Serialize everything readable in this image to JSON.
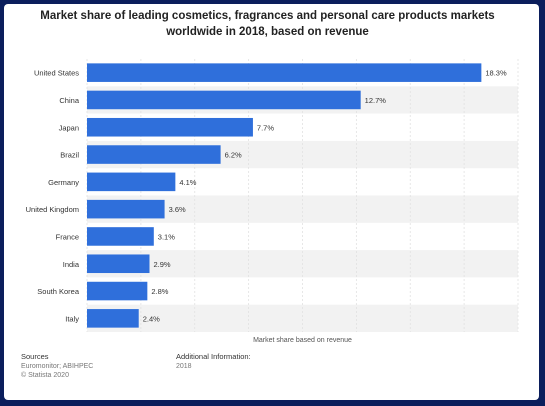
{
  "chart_data": {
    "type": "bar",
    "orientation": "horizontal",
    "title": "Market share of leading cosmetics, fragrances and personal care products markets worldwide in 2018, based on revenue",
    "title_lines": [
      "Market share of leading cosmetics, fragrances and personal care products markets",
      "worldwide in 2018, based on revenue"
    ],
    "categories": [
      "United States",
      "China",
      "Japan",
      "Brazil",
      "Germany",
      "United Kingdom",
      "France",
      "India",
      "South Korea",
      "Italy"
    ],
    "values": [
      18.3,
      12.7,
      7.7,
      6.2,
      4.1,
      3.6,
      3.1,
      2.9,
      2.8,
      2.4
    ],
    "value_labels": [
      "18.3%",
      "12.7%",
      "7.7%",
      "6.2%",
      "4.1%",
      "3.6%",
      "3.1%",
      "2.9%",
      "2.8%",
      "2.4%"
    ],
    "xlabel": "Market share based on revenue",
    "ylabel": "",
    "xlim": [
      0,
      20
    ],
    "bar_color": "#2f6fdb",
    "grid": true,
    "alternating_rows": true
  },
  "footer": {
    "sources_heading": "Sources",
    "sources_line1": "Euromonitor; ABIHPEC",
    "sources_line2": "© Statista 2020",
    "additional_heading": "Additional Information:",
    "additional_value": "2018"
  }
}
